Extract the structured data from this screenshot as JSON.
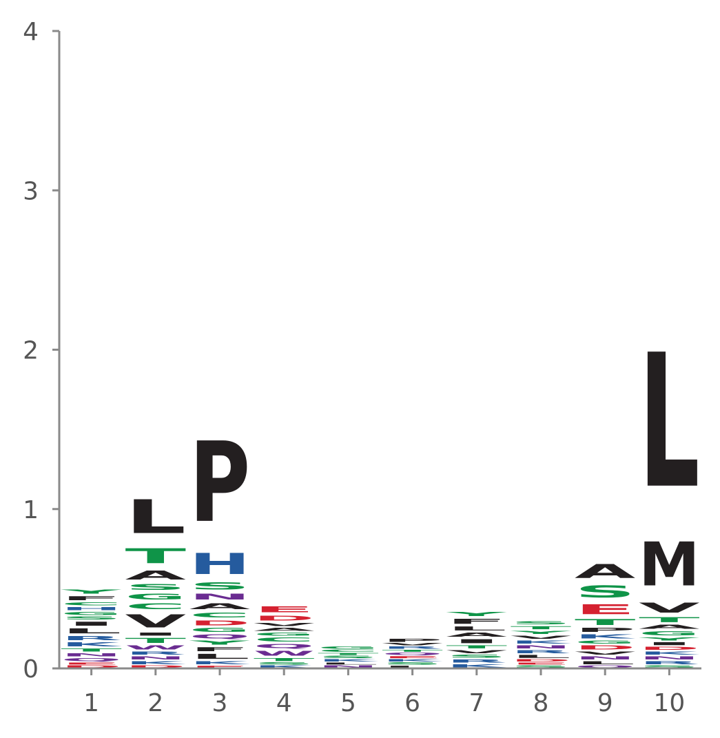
{
  "chart_data": {
    "type": "sequence-logo",
    "title": "",
    "xlabel": "",
    "ylabel": "",
    "ylim": [
      0,
      4
    ],
    "y_ticks": [
      0,
      1,
      2,
      3,
      4
    ],
    "positions": [
      "1",
      "2",
      "3",
      "4",
      "5",
      "6",
      "7",
      "8",
      "9",
      "10"
    ],
    "colors": {
      "hydrophobic": "#231f20",
      "polar": "#0f9448",
      "basic": "#255b9e",
      "acidic": "#d52130",
      "amide": "#6a2c91"
    },
    "stacks": [
      {
        "position": "1",
        "letters": [
          {
            "aa": "D",
            "bits": 0.02
          },
          {
            "aa": "E",
            "bits": 0.02
          },
          {
            "aa": "Q",
            "bits": 0.03
          },
          {
            "aa": "N",
            "bits": 0.03
          },
          {
            "aa": "T",
            "bits": 0.03
          },
          {
            "aa": "K",
            "bits": 0.04
          },
          {
            "aa": "R",
            "bits": 0.04
          },
          {
            "aa": "L",
            "bits": 0.05
          },
          {
            "aa": "I",
            "bits": 0.04
          },
          {
            "aa": "S",
            "bits": 0.03
          },
          {
            "aa": "G",
            "bits": 0.03
          },
          {
            "aa": "H",
            "bits": 0.03
          },
          {
            "aa": "C",
            "bits": 0.03
          },
          {
            "aa": "F",
            "bits": 0.04
          },
          {
            "aa": "Y",
            "bits": 0.04
          }
        ]
      },
      {
        "position": "2",
        "letters": [
          {
            "aa": "D",
            "bits": 0.02
          },
          {
            "aa": "K",
            "bits": 0.03
          },
          {
            "aa": "N",
            "bits": 0.03
          },
          {
            "aa": "R",
            "bits": 0.03
          },
          {
            "aa": "W",
            "bits": 0.04
          },
          {
            "aa": "T",
            "bits": 0.05
          },
          {
            "aa": "I",
            "bits": 0.03
          },
          {
            "aa": "V",
            "bits": 0.13
          },
          {
            "aa": "C",
            "bits": 0.06
          },
          {
            "aa": "G",
            "bits": 0.06
          },
          {
            "aa": "S",
            "bits": 0.06
          },
          {
            "aa": "A",
            "bits": 0.09
          },
          {
            "aa": "T",
            "bits": 0.15
          },
          {
            "aa": "L",
            "bits": 0.34
          }
        ]
      },
      {
        "position": "3",
        "letters": [
          {
            "aa": "E",
            "bits": 0.02
          },
          {
            "aa": "K",
            "bits": 0.03
          },
          {
            "aa": "L",
            "bits": 0.05
          },
          {
            "aa": "F",
            "bits": 0.04
          },
          {
            "aa": "Y",
            "bits": 0.04
          },
          {
            "aa": "Q",
            "bits": 0.04
          },
          {
            "aa": "G",
            "bits": 0.04
          },
          {
            "aa": "D",
            "bits": 0.05
          },
          {
            "aa": "C",
            "bits": 0.05
          },
          {
            "aa": "A",
            "bits": 0.06
          },
          {
            "aa": "N",
            "bits": 0.06
          },
          {
            "aa": "S",
            "bits": 0.07
          },
          {
            "aa": "H",
            "bits": 0.21
          },
          {
            "aa": "P",
            "bits": 0.81
          }
        ]
      },
      {
        "position": "4",
        "letters": [
          {
            "aa": "K",
            "bits": 0.02
          },
          {
            "aa": "S",
            "bits": 0.02
          },
          {
            "aa": "T",
            "bits": 0.03
          },
          {
            "aa": "W",
            "bits": 0.05
          },
          {
            "aa": "Q",
            "bits": 0.04
          },
          {
            "aa": "C",
            "bits": 0.04
          },
          {
            "aa": "G",
            "bits": 0.03
          },
          {
            "aa": "A",
            "bits": 0.03
          },
          {
            "aa": "V",
            "bits": 0.03
          },
          {
            "aa": "D",
            "bits": 0.05
          },
          {
            "aa": "E",
            "bits": 0.06
          }
        ]
      },
      {
        "position": "5",
        "letters": [
          {
            "aa": "N",
            "bits": 0.02
          },
          {
            "aa": "L",
            "bits": 0.02
          },
          {
            "aa": "K",
            "bits": 0.02
          },
          {
            "aa": "S",
            "bits": 0.02
          },
          {
            "aa": "T",
            "bits": 0.02
          },
          {
            "aa": "C",
            "bits": 0.02
          },
          {
            "aa": "G",
            "bits": 0.02
          }
        ]
      },
      {
        "position": "6",
        "letters": [
          {
            "aa": "L",
            "bits": 0.02
          },
          {
            "aa": "S",
            "bits": 0.02
          },
          {
            "aa": "K",
            "bits": 0.02
          },
          {
            "aa": "E",
            "bits": 0.02
          },
          {
            "aa": "Q",
            "bits": 0.02
          },
          {
            "aa": "T",
            "bits": 0.02
          },
          {
            "aa": "R",
            "bits": 0.02
          },
          {
            "aa": "V",
            "bits": 0.02
          },
          {
            "aa": "P",
            "bits": 0.03
          }
        ]
      },
      {
        "position": "7",
        "letters": [
          {
            "aa": "K",
            "bits": 0.03
          },
          {
            "aa": "R",
            "bits": 0.03
          },
          {
            "aa": "S",
            "bits": 0.03
          },
          {
            "aa": "V",
            "bits": 0.03
          },
          {
            "aa": "T",
            "bits": 0.03
          },
          {
            "aa": "I",
            "bits": 0.04
          },
          {
            "aa": "A",
            "bits": 0.04
          },
          {
            "aa": "L",
            "bits": 0.04
          },
          {
            "aa": "F",
            "bits": 0.05
          },
          {
            "aa": "Y",
            "bits": 0.04
          }
        ]
      },
      {
        "position": "8",
        "letters": [
          {
            "aa": "S",
            "bits": 0.02
          },
          {
            "aa": "E",
            "bits": 0.02
          },
          {
            "aa": "D",
            "bits": 0.02
          },
          {
            "aa": "L",
            "bits": 0.03
          },
          {
            "aa": "R",
            "bits": 0.03
          },
          {
            "aa": "N",
            "bits": 0.03
          },
          {
            "aa": "K",
            "bits": 0.03
          },
          {
            "aa": "V",
            "bits": 0.03
          },
          {
            "aa": "Y",
            "bits": 0.03
          },
          {
            "aa": "T",
            "bits": 0.03
          },
          {
            "aa": "S",
            "bits": 0.03
          }
        ]
      },
      {
        "position": "9",
        "letters": [
          {
            "aa": "Q",
            "bits": 0.02
          },
          {
            "aa": "L",
            "bits": 0.03
          },
          {
            "aa": "N",
            "bits": 0.03
          },
          {
            "aa": "V",
            "bits": 0.03
          },
          {
            "aa": "D",
            "bits": 0.04
          },
          {
            "aa": "G",
            "bits": 0.03
          },
          {
            "aa": "K",
            "bits": 0.04
          },
          {
            "aa": "P",
            "bits": 0.04
          },
          {
            "aa": "T",
            "bits": 0.06
          },
          {
            "aa": "E",
            "bits": 0.1
          },
          {
            "aa": "S",
            "bits": 0.12
          },
          {
            "aa": "A",
            "bits": 0.14
          }
        ]
      },
      {
        "position": "10",
        "letters": [
          {
            "aa": "S",
            "bits": 0.02
          },
          {
            "aa": "R",
            "bits": 0.03
          },
          {
            "aa": "N",
            "bits": 0.03
          },
          {
            "aa": "K",
            "bits": 0.03
          },
          {
            "aa": "D",
            "bits": 0.03
          },
          {
            "aa": "I",
            "bits": 0.03
          },
          {
            "aa": "Y",
            "bits": 0.03
          },
          {
            "aa": "G",
            "bits": 0.04
          },
          {
            "aa": "A",
            "bits": 0.04
          },
          {
            "aa": "T",
            "bits": 0.05
          },
          {
            "aa": "V",
            "bits": 0.1
          },
          {
            "aa": "M",
            "bits": 0.44
          },
          {
            "aa": "L",
            "bits": 1.35
          }
        ]
      }
    ]
  }
}
